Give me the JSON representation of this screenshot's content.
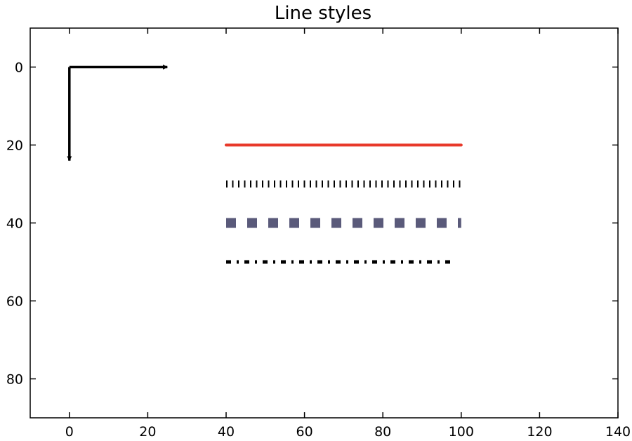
{
  "chart_data": {
    "type": "line",
    "title": "Line styles",
    "xlabel": "",
    "ylabel": "",
    "xlim": [
      -10,
      140
    ],
    "ylim": [
      90,
      -10
    ],
    "y_inverted": true,
    "grid": false,
    "legend": "none",
    "x_ticks": [
      0,
      20,
      40,
      60,
      80,
      100,
      120,
      140
    ],
    "y_ticks": [
      0,
      20,
      40,
      60,
      80
    ],
    "series": [
      {
        "x": [
          40,
          100
        ],
        "y": [
          20,
          20
        ],
        "style": "solid",
        "color": "#e8392a"
      },
      {
        "x": [
          40,
          100
        ],
        "y": [
          30,
          30
        ],
        "style": "dotted",
        "color": "#000000"
      },
      {
        "x": [
          40,
          100
        ],
        "y": [
          40,
          40
        ],
        "style": "dashed",
        "color": "#5a5a7a"
      },
      {
        "x": [
          40,
          98
        ],
        "y": [
          50,
          50
        ],
        "style": "dashdot",
        "color": "#000000"
      }
    ],
    "arrows": [
      {
        "from": [
          0,
          0
        ],
        "to": [
          25,
          0
        ],
        "color": "#000000"
      },
      {
        "from": [
          0,
          0
        ],
        "to": [
          0,
          24
        ],
        "color": "#000000"
      }
    ]
  }
}
